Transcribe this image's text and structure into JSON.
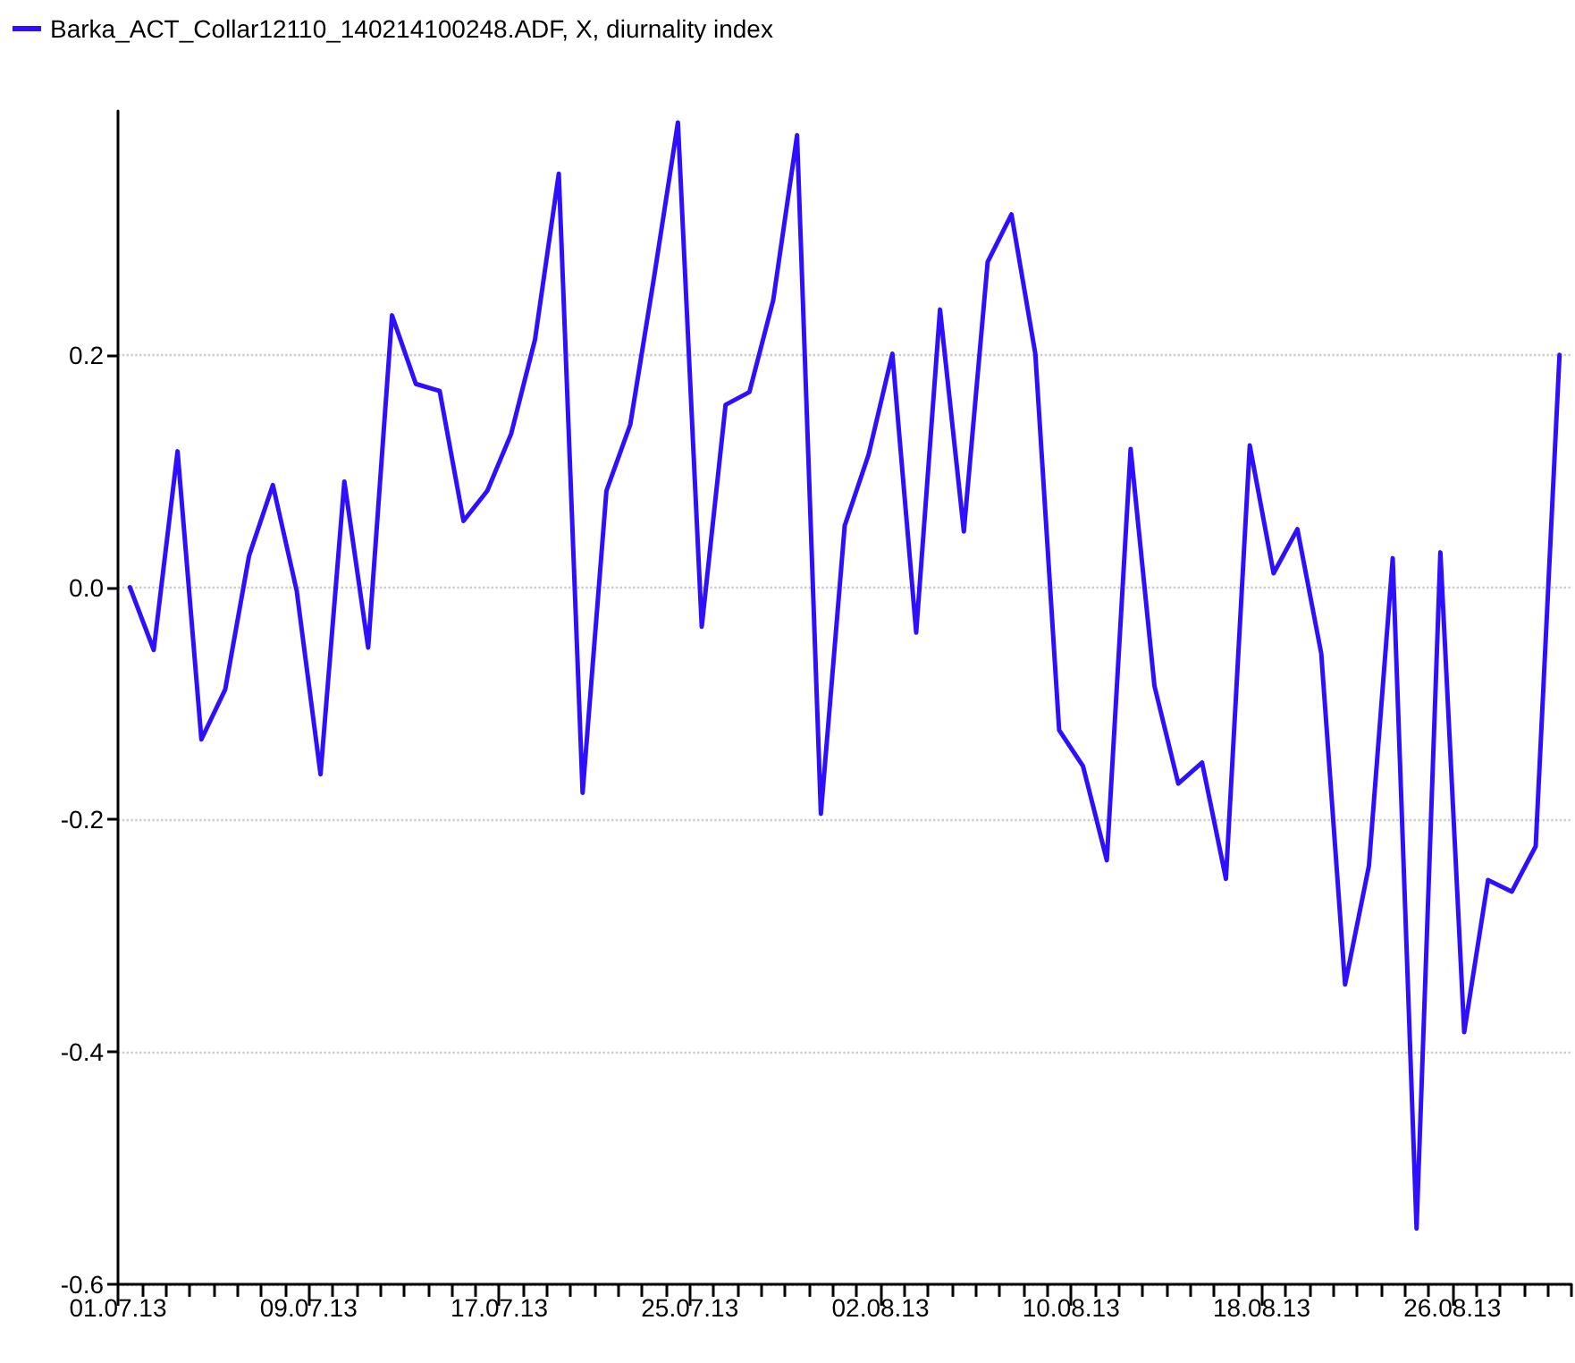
{
  "chart_data": {
    "type": "line",
    "legend": "top left",
    "grid": "y",
    "marker": "none",
    "line_style": "solid",
    "x": [
      "--07-01T12:00",
      "--07-02T12:00",
      "--07-03T12:00",
      "--07-04T12:00",
      "--07-05T12:00",
      "--07-06T12:00",
      "--07-07T12:00",
      "--07-08T12:00",
      "--07-09T12:00",
      "--07-10T12:00",
      "--07-11T12:00",
      "--07-12T12:00",
      "--07-13T12:00",
      "--07-14T12:00",
      "--07-15T12:00",
      "--07-16T12:00",
      "--07-17T12:00",
      "--07-18T12:00",
      "--07-19T12:00",
      "--07-20T12:00",
      "--07-21T12:00",
      "--07-22T12:00",
      "--07-23T12:00",
      "--07-24T12:00",
      "--07-25T12:00",
      "--07-26T12:00",
      "--07-27T12:00",
      "--07-28T12:00",
      "--07-29T12:00",
      "--07-30T12:00",
      "--07-31T12:00",
      "--08-01T12:00",
      "--08-02T12:00",
      "--08-03T12:00",
      "--08-04T12:00",
      "--08-05T12:00",
      "--08-06T12:00",
      "--08-07T12:00",
      "--08-08T12:00",
      "--08-09T12:00",
      "--08-10T12:00",
      "--08-11T12:00",
      "--08-12T12:00",
      "--08-13T12:00",
      "--08-14T12:00",
      "--08-15T12:00",
      "--08-16T12:00",
      "--08-17T12:00",
      "--08-18T12:00",
      "--08-19T12:00",
      "--08-20T12:00",
      "--08-21T12:00",
      "--08-22T12:00",
      "--08-23T12:00",
      "--08-24T12:00",
      "--08-25T12:00",
      "--08-26T12:00",
      "--08-27T12:00",
      "--08-28T12:00",
      "--08-29T12:00",
      "--08-30T12:00"
    ],
    "series": [
      {
        "name": "Barka_ACT_Collar12110_140214100248.ADF, X, diurnality index",
        "color": "#2f0fff",
        "values": [
          0.0,
          -0.054,
          0.117,
          -0.131,
          -0.088,
          0.027,
          0.088,
          -0.003,
          -0.161,
          0.091,
          -0.052,
          0.234,
          0.175,
          0.169,
          0.057,
          0.083,
          0.132,
          0.213,
          0.356,
          -0.177,
          0.083,
          0.14,
          0.267,
          0.4,
          -0.034,
          0.157,
          0.168,
          0.247,
          0.389,
          -0.195,
          0.053,
          0.114,
          0.201,
          -0.039,
          0.239,
          0.048,
          0.28,
          0.321,
          0.201,
          -0.123,
          -0.154,
          -0.235,
          0.119,
          -0.085,
          -0.169,
          -0.151,
          -0.251,
          0.122,
          0.012,
          0.05,
          -0.057,
          -0.342,
          -0.24,
          0.025,
          -0.552,
          0.03,
          -0.383,
          -0.252,
          -0.262,
          -0.223,
          0.2
        ]
      }
    ],
    "xlim": [
      "--07-01",
      "--08-31"
    ],
    "xticks": [
      {
        "value": "--07-01",
        "label": "01.07.13"
      },
      {
        "value": "--07-02",
        "label": null
      },
      {
        "value": "--07-03",
        "label": null
      },
      {
        "value": "--07-04",
        "label": null
      },
      {
        "value": "--07-05",
        "label": null
      },
      {
        "value": "--07-06",
        "label": null
      },
      {
        "value": "--07-07",
        "label": null
      },
      {
        "value": "--07-08",
        "label": null
      },
      {
        "value": "--07-09",
        "label": "09.07.13"
      },
      {
        "value": "--07-10",
        "label": null
      },
      {
        "value": "--07-11",
        "label": null
      },
      {
        "value": "--07-12",
        "label": null
      },
      {
        "value": "--07-13",
        "label": null
      },
      {
        "value": "--07-14",
        "label": null
      },
      {
        "value": "--07-15",
        "label": null
      },
      {
        "value": "--07-16",
        "label": null
      },
      {
        "value": "--07-17",
        "label": "17.07.13"
      },
      {
        "value": "--07-18",
        "label": null
      },
      {
        "value": "--07-19",
        "label": null
      },
      {
        "value": "--07-20",
        "label": null
      },
      {
        "value": "--07-21",
        "label": null
      },
      {
        "value": "--07-22",
        "label": null
      },
      {
        "value": "--07-23",
        "label": null
      },
      {
        "value": "--07-24",
        "label": null
      },
      {
        "value": "--07-25",
        "label": "25.07.13"
      },
      {
        "value": "--07-26",
        "label": null
      },
      {
        "value": "--07-27",
        "label": null
      },
      {
        "value": "--07-28",
        "label": null
      },
      {
        "value": "--07-29",
        "label": null
      },
      {
        "value": "--07-30",
        "label": null
      },
      {
        "value": "--07-31",
        "label": null
      },
      {
        "value": "--08-01",
        "label": null
      },
      {
        "value": "--08-02",
        "label": "02.08.13"
      },
      {
        "value": "--08-03",
        "label": null
      },
      {
        "value": "--08-04",
        "label": null
      },
      {
        "value": "--08-05",
        "label": null
      },
      {
        "value": "--08-06",
        "label": null
      },
      {
        "value": "--08-07",
        "label": null
      },
      {
        "value": "--08-08",
        "label": null
      },
      {
        "value": "--08-09",
        "label": null
      },
      {
        "value": "--08-10",
        "label": "10.08.13"
      },
      {
        "value": "--08-11",
        "label": null
      },
      {
        "value": "--08-12",
        "label": null
      },
      {
        "value": "--08-13",
        "label": null
      },
      {
        "value": "--08-14",
        "label": null
      },
      {
        "value": "--08-15",
        "label": null
      },
      {
        "value": "--08-16",
        "label": null
      },
      {
        "value": "--08-17",
        "label": null
      },
      {
        "value": "--08-18",
        "label": "18.08.13"
      },
      {
        "value": "--08-19",
        "label": null
      },
      {
        "value": "--08-20",
        "label": null
      },
      {
        "value": "--08-21",
        "label": null
      },
      {
        "value": "--08-22",
        "label": null
      },
      {
        "value": "--08-23",
        "label": null
      },
      {
        "value": "--08-24",
        "label": null
      },
      {
        "value": "--08-25",
        "label": null
      },
      {
        "value": "--08-26",
        "label": "26.08.13"
      },
      {
        "value": "--08-27",
        "label": null
      },
      {
        "value": "--08-28",
        "label": null
      },
      {
        "value": "--08-29",
        "label": null
      },
      {
        "value": "--08-30",
        "label": null
      },
      {
        "value": "--08-31",
        "label": null
      }
    ],
    "ylim": [
      -0.6,
      0.41
    ],
    "yticks": [
      -0.6,
      -0.4,
      -0.2,
      {
        "value": 0,
        "label": "0.0"
      },
      0.2
    ]
  }
}
